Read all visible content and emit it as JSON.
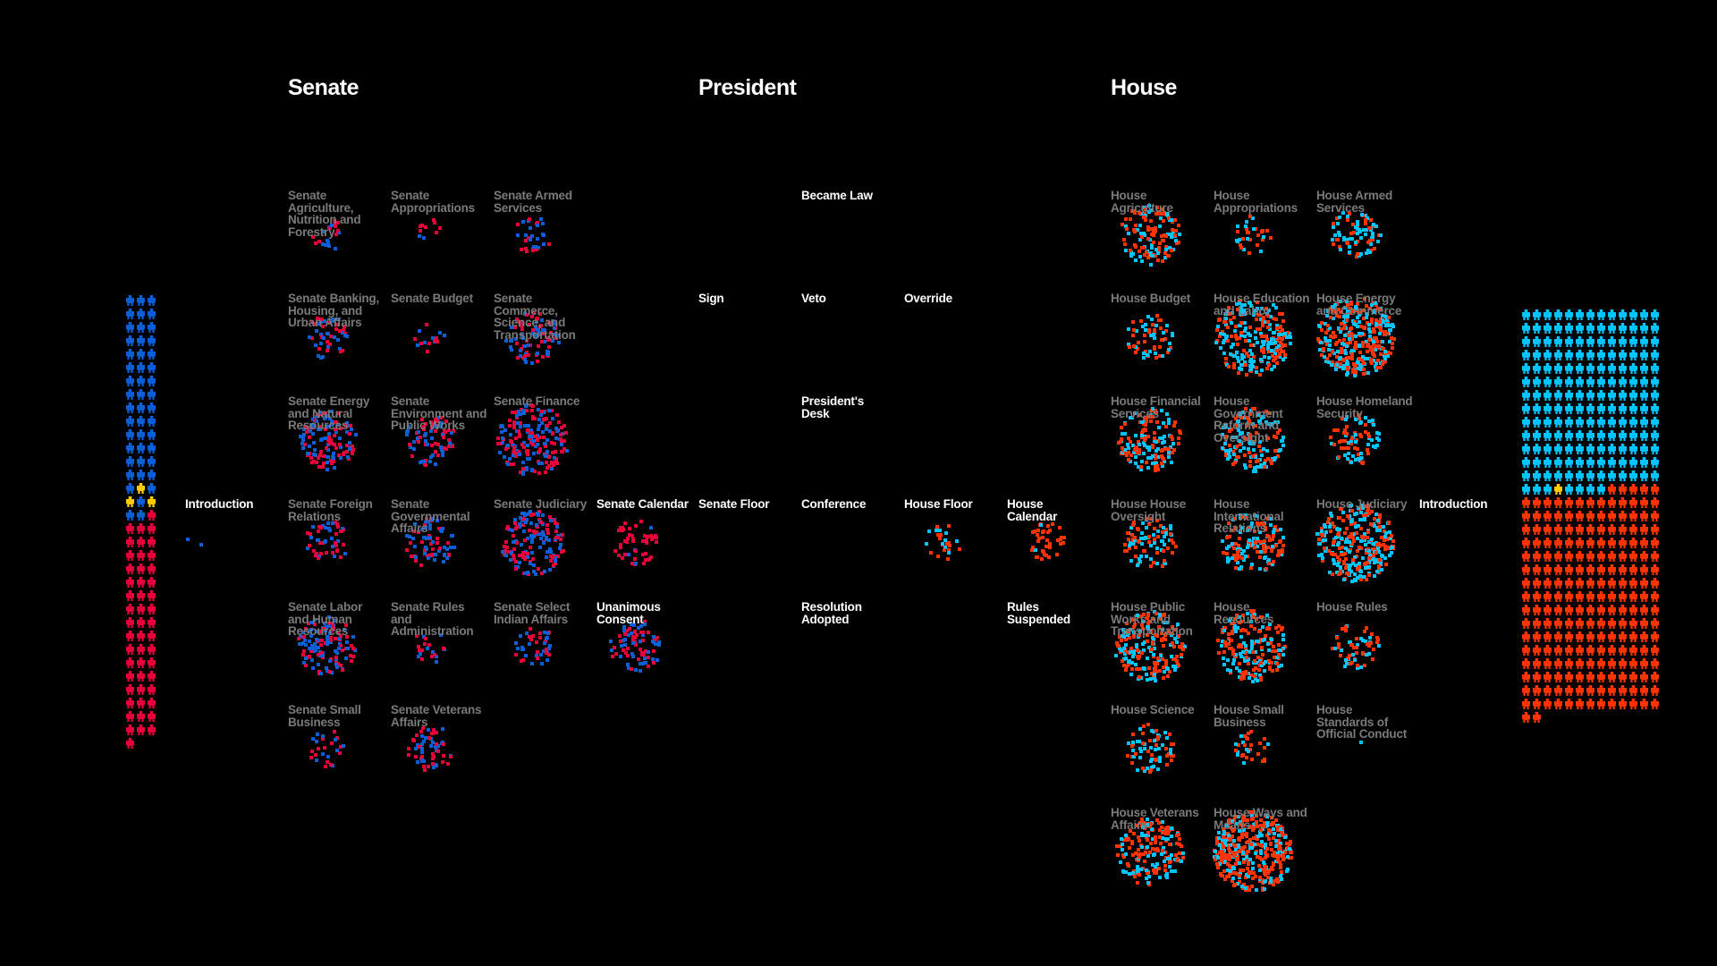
{
  "colors": {
    "background": "#000000",
    "senate_dem": "#0a5fd6",
    "senate_rep": "#e8003a",
    "independent": "#ffcc00",
    "house_dem": "#00c4ff",
    "house_rep": "#ff3300",
    "committee_label": "#7a7a7a",
    "stage_label": "#ffffff"
  },
  "headers": {
    "senate": "Senate",
    "president": "President",
    "house": "House"
  },
  "members": {
    "senate": {
      "dem": 47,
      "independent": 3,
      "rep": 50
    },
    "house": {
      "dem": 176,
      "independent": 1,
      "rep": 215
    }
  },
  "nodes": [
    {
      "label": "Introduction",
      "count": 2,
      "rep_share": 0.5,
      "chamber": "senate"
    },
    {
      "label": "Senate Agriculture, Nutrition and Forestry",
      "count": 20,
      "rep_share": 0.5,
      "chamber": "senate"
    },
    {
      "label": "Senate Appropriations",
      "count": 10,
      "rep_share": 0.7,
      "chamber": "senate"
    },
    {
      "label": "Senate Armed Services",
      "count": 30,
      "rep_share": 0.5,
      "chamber": "senate"
    },
    {
      "label": "Senate Banking, Housing, and Urban Affairs",
      "count": 50,
      "rep_share": 0.5,
      "chamber": "senate"
    },
    {
      "label": "Senate Budget",
      "count": 15,
      "rep_share": 0.5,
      "chamber": "senate"
    },
    {
      "label": "Senate Commerce, Science, and Transportation",
      "count": 90,
      "rep_share": 0.5,
      "chamber": "senate"
    },
    {
      "label": "Senate Energy and Natural Resources",
      "count": 120,
      "rep_share": 0.5,
      "chamber": "senate"
    },
    {
      "label": "Senate Environment and Public Works",
      "count": 80,
      "rep_share": 0.5,
      "chamber": "senate"
    },
    {
      "label": "Senate Finance",
      "count": 200,
      "rep_share": 0.5,
      "chamber": "senate"
    },
    {
      "label": "Senate Foreign Relations",
      "count": 50,
      "rep_share": 0.5,
      "chamber": "senate"
    },
    {
      "label": "Senate Governmental Affairs",
      "count": 70,
      "rep_share": 0.5,
      "chamber": "senate"
    },
    {
      "label": "Senate Judiciary",
      "count": 150,
      "rep_share": 0.45,
      "chamber": "senate"
    },
    {
      "label": "Senate Calendar",
      "count": 50,
      "rep_share": 0.85,
      "chamber": "senate"
    },
    {
      "label": "Senate Labor and Human Resources",
      "count": 120,
      "rep_share": 0.4,
      "chamber": "senate"
    },
    {
      "label": "Senate Rules and Administration",
      "count": 20,
      "rep_share": 0.5,
      "chamber": "senate"
    },
    {
      "label": "Senate Select Indian Affairs",
      "count": 40,
      "rep_share": 0.5,
      "chamber": "senate"
    },
    {
      "label": "Unanimous Consent",
      "count": 80,
      "rep_share": 0.55,
      "chamber": "senate"
    },
    {
      "label": "Senate Small Business",
      "count": 25,
      "rep_share": 0.6,
      "chamber": "senate"
    },
    {
      "label": "Senate Veterans Affairs",
      "count": 60,
      "rep_share": 0.5,
      "chamber": "senate"
    },
    {
      "label": "Became Law",
      "count": 0,
      "rep_share": 0.5,
      "chamber": "president"
    },
    {
      "label": "Sign",
      "count": 0,
      "rep_share": 0.5,
      "chamber": "president"
    },
    {
      "label": "Veto",
      "count": 0,
      "rep_share": 0.5,
      "chamber": "president"
    },
    {
      "label": "Override",
      "count": 0,
      "rep_share": 0.5,
      "chamber": "president"
    },
    {
      "label": "President's Desk",
      "count": 0,
      "rep_share": 0.5,
      "chamber": "president"
    },
    {
      "label": "Senate Floor",
      "count": 0,
      "rep_share": 0.5,
      "chamber": "president"
    },
    {
      "label": "Conference",
      "count": 0,
      "rep_share": 0.5,
      "chamber": "president"
    },
    {
      "label": "House Floor",
      "count": 25,
      "rep_share": 0.6,
      "chamber": "house"
    },
    {
      "label": "House Calendar",
      "count": 40,
      "rep_share": 0.95,
      "chamber": "house"
    },
    {
      "label": "Resolution Adopted",
      "count": 0,
      "rep_share": 0.5,
      "chamber": "president"
    },
    {
      "label": "Rules Suspended",
      "count": 0,
      "rep_share": 0.5,
      "chamber": "president"
    },
    {
      "label": "House Agriculture",
      "count": 130,
      "rep_share": 0.55,
      "chamber": "house"
    },
    {
      "label": "House Appropriations",
      "count": 30,
      "rep_share": 0.6,
      "chamber": "house"
    },
    {
      "label": "House Armed Services",
      "count": 80,
      "rep_share": 0.5,
      "chamber": "house"
    },
    {
      "label": "House Budget",
      "count": 60,
      "rep_share": 0.6,
      "chamber": "house"
    },
    {
      "label": "House Education and Labor",
      "count": 250,
      "rep_share": 0.4,
      "chamber": "house"
    },
    {
      "label": "House Energy and Commerce",
      "count": 350,
      "rep_share": 0.6,
      "chamber": "house"
    },
    {
      "label": "House Financial Services",
      "count": 150,
      "rep_share": 0.5,
      "chamber": "house"
    },
    {
      "label": "House Government Reform and Oversight",
      "count": 150,
      "rep_share": 0.5,
      "chamber": "house"
    },
    {
      "label": "House Homeland Security",
      "count": 80,
      "rep_share": 0.55,
      "chamber": "house"
    },
    {
      "label": "House House Oversight",
      "count": 90,
      "rep_share": 0.5,
      "chamber": "house"
    },
    {
      "label": "House International Relations",
      "count": 140,
      "rep_share": 0.55,
      "chamber": "house"
    },
    {
      "label": "House Judiciary",
      "count": 300,
      "rep_share": 0.55,
      "chamber": "house"
    },
    {
      "label": "House Public Works and Transportation",
      "count": 200,
      "rep_share": 0.5,
      "chamber": "house"
    },
    {
      "label": "House Resources",
      "count": 200,
      "rep_share": 0.6,
      "chamber": "house"
    },
    {
      "label": "House Rules",
      "count": 60,
      "rep_share": 0.6,
      "chamber": "house"
    },
    {
      "label": "House Science",
      "count": 70,
      "rep_share": 0.5,
      "chamber": "house"
    },
    {
      "label": "House Small Business",
      "count": 30,
      "rep_share": 0.6,
      "chamber": "house"
    },
    {
      "label": "House Standards of Official Conduct",
      "count": 1,
      "rep_share": 0,
      "chamber": "house"
    },
    {
      "label": "House Veterans Affairs",
      "count": 180,
      "rep_share": 0.6,
      "chamber": "house"
    },
    {
      "label": "House Ways and Means",
      "count": 400,
      "rep_share": 0.65,
      "chamber": "house"
    },
    {
      "label": "Introduction",
      "count": 0,
      "rep_share": 0.5,
      "chamber": "house"
    }
  ]
}
